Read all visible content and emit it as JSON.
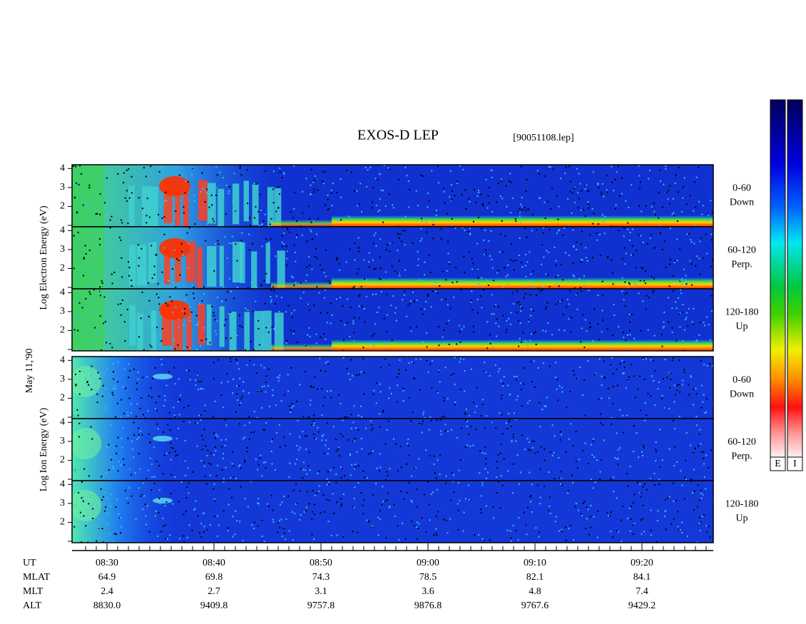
{
  "title": "EXOS-D LEP",
  "file": "[90051108.lep]",
  "date": "May 11,'90",
  "groups": [
    {
      "label": "Log Electron Energy (eV)",
      "panels": [
        {
          "angle": "0-60",
          "direction": "Down"
        },
        {
          "angle": "60-120",
          "direction": "Perp."
        },
        {
          "angle": "120-180",
          "direction": "Up"
        }
      ]
    },
    {
      "label": "Log Ion Energy (eV)",
      "panels": [
        {
          "angle": "0-60",
          "direction": "Down"
        },
        {
          "angle": "60-120",
          "direction": "Perp."
        },
        {
          "angle": "120-180",
          "direction": "Up"
        }
      ]
    }
  ],
  "yticks": [
    2,
    3,
    4
  ],
  "time_axis": {
    "rows": [
      {
        "name": "UT",
        "values": [
          "08:30",
          "08:40",
          "08:50",
          "09:00",
          "09:10",
          "09:20"
        ]
      },
      {
        "name": "MLAT",
        "values": [
          "64.9",
          "69.8",
          "74.3",
          "78.5",
          "82.1",
          "84.1"
        ]
      },
      {
        "name": "MLT",
        "values": [
          "2.4",
          "2.7",
          "3.1",
          "3.6",
          "4.8",
          "7.4"
        ]
      },
      {
        "name": "ALT",
        "values": [
          "8830.0",
          "9409.8",
          "9757.8",
          "9876.8",
          "9767.6",
          "9429.2"
        ]
      }
    ]
  },
  "colorbars": [
    "E",
    "I"
  ]
}
